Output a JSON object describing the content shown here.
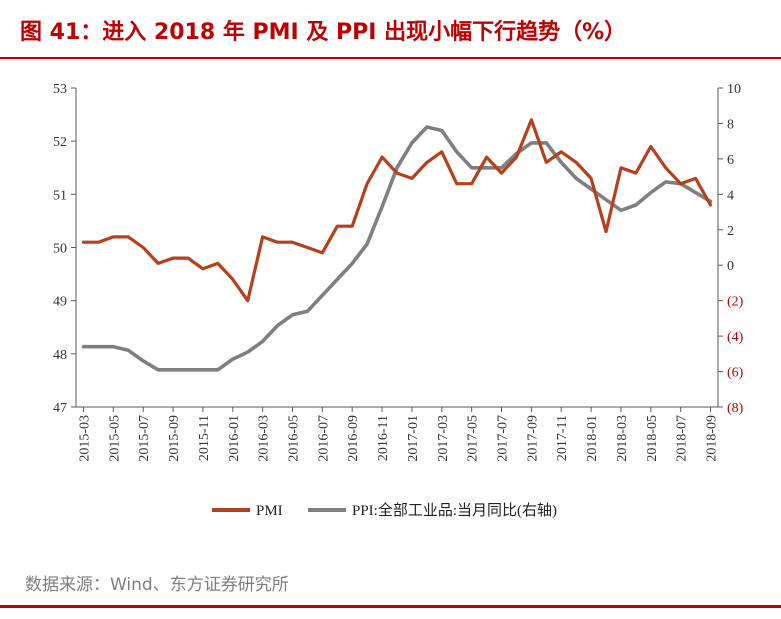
{
  "title": "图 41：进入 2018 年 PMI 及 PPI 出现小幅下行趋势（%）",
  "source": "数据来源：Wind、东方证券研究所",
  "colors": {
    "title": "#c00000",
    "pmi": "#b5401b",
    "ppi": "#7f7f7f",
    "negative_tick": "#c00000"
  },
  "chart_data": {
    "type": "line",
    "title": "图 41：进入 2018 年 PMI 及 PPI 出现小幅下行趋势（%）",
    "x": [
      "2015-03",
      "2015-04",
      "2015-05",
      "2015-06",
      "2015-07",
      "2015-08",
      "2015-09",
      "2015-10",
      "2015-11",
      "2015-12",
      "2016-01",
      "2016-02",
      "2016-03",
      "2016-04",
      "2016-05",
      "2016-06",
      "2016-07",
      "2016-08",
      "2016-09",
      "2016-10",
      "2016-11",
      "2016-12",
      "2017-01",
      "2017-02",
      "2017-03",
      "2017-04",
      "2017-05",
      "2017-06",
      "2017-07",
      "2017-08",
      "2017-09",
      "2017-10",
      "2017-11",
      "2017-12",
      "2018-01",
      "2018-02",
      "2018-03",
      "2018-04",
      "2018-05",
      "2018-06",
      "2018-07",
      "2018-08",
      "2018-09"
    ],
    "x_tick_labels": [
      "2015-03",
      "2015-05",
      "2015-07",
      "2015-09",
      "2015-11",
      "2016-01",
      "2016-03",
      "2016-05",
      "2016-07",
      "2016-09",
      "2016-11",
      "2017-01",
      "2017-03",
      "2017-05",
      "2017-07",
      "2017-09",
      "2017-11",
      "2018-01",
      "2018-03",
      "2018-05",
      "2018-07",
      "2018-09"
    ],
    "left_axis": {
      "ylim": [
        47,
        53
      ],
      "ticks": [
        "47",
        "48",
        "49",
        "50",
        "51",
        "52",
        "53"
      ]
    },
    "right_axis": {
      "ylim": [
        -8,
        10
      ],
      "ticks": [
        "(8)",
        "(6)",
        "(4)",
        "(2)",
        "0",
        "2",
        "4",
        "6",
        "8",
        "10"
      ],
      "tick_values": [
        -8,
        -6,
        -4,
        -2,
        0,
        2,
        4,
        6,
        8,
        10
      ]
    },
    "series": [
      {
        "name": "PMI",
        "axis": "left",
        "values": [
          50.1,
          50.1,
          50.2,
          50.2,
          50.0,
          49.7,
          49.8,
          49.8,
          49.6,
          49.7,
          49.4,
          49.0,
          50.2,
          50.1,
          50.1,
          50.0,
          49.9,
          50.4,
          50.4,
          51.2,
          51.7,
          51.4,
          51.3,
          51.6,
          51.8,
          51.2,
          51.2,
          51.7,
          51.4,
          51.7,
          52.4,
          51.6,
          51.8,
          51.6,
          51.3,
          50.3,
          51.5,
          51.4,
          51.9,
          51.5,
          51.2,
          51.3,
          50.8
        ]
      },
      {
        "name": "PPI:全部工业品:当月同比(右轴)",
        "axis": "right",
        "values": [
          -4.6,
          -4.6,
          -4.6,
          -4.8,
          -5.4,
          -5.9,
          -5.9,
          -5.9,
          -5.9,
          -5.9,
          -5.3,
          -4.9,
          -4.3,
          -3.4,
          -2.8,
          -2.6,
          -1.7,
          -0.8,
          0.1,
          1.2,
          3.3,
          5.5,
          6.9,
          7.8,
          7.6,
          6.4,
          5.5,
          5.5,
          5.5,
          6.3,
          6.9,
          6.9,
          5.8,
          4.9,
          4.3,
          3.7,
          3.1,
          3.4,
          4.1,
          4.7,
          4.6,
          4.1,
          3.6
        ]
      }
    ],
    "legend": {
      "position": "bottom",
      "entries": [
        "PMI",
        "PPI:全部工业品:当月同比(右轴)"
      ]
    },
    "grid": false
  }
}
